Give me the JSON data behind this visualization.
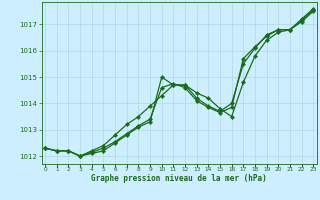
{
  "xlabel": "Graphe pression niveau de la mer (hPa)",
  "background_color": "#cceeff",
  "grid_color": "#b0d8e0",
  "line_color": "#1a6b1a",
  "ylim": [
    1011.7,
    1017.85
  ],
  "xlim": [
    -0.3,
    23.3
  ],
  "yticks": [
    1012,
    1013,
    1014,
    1015,
    1016,
    1017
  ],
  "xticks": [
    0,
    1,
    2,
    3,
    4,
    5,
    6,
    7,
    8,
    9,
    10,
    11,
    12,
    13,
    14,
    15,
    16,
    17,
    18,
    19,
    20,
    21,
    22,
    23
  ],
  "series1": [
    1012.3,
    1012.2,
    1012.2,
    1012.0,
    1012.1,
    1012.2,
    1012.5,
    1012.8,
    1013.1,
    1013.3,
    1015.0,
    1014.7,
    1014.7,
    1014.2,
    1013.9,
    1013.7,
    1014.0,
    1015.5,
    1016.1,
    1016.6,
    1016.8,
    1016.8,
    1017.2,
    1017.6
  ],
  "series2": [
    1012.3,
    1012.2,
    1012.2,
    1012.0,
    1012.15,
    1012.3,
    1012.55,
    1012.85,
    1013.15,
    1013.4,
    1014.6,
    1014.75,
    1014.6,
    1014.1,
    1013.85,
    1013.65,
    1013.85,
    1015.7,
    1016.15,
    1016.55,
    1016.8,
    1016.8,
    1017.15,
    1017.55
  ],
  "series3": [
    1012.3,
    1012.2,
    1012.2,
    1012.0,
    1012.2,
    1012.4,
    1012.8,
    1013.2,
    1013.5,
    1013.9,
    1014.3,
    1014.7,
    1014.7,
    1014.4,
    1014.2,
    1013.8,
    1013.5,
    1014.8,
    1015.8,
    1016.4,
    1016.7,
    1016.8,
    1017.1,
    1017.5
  ]
}
